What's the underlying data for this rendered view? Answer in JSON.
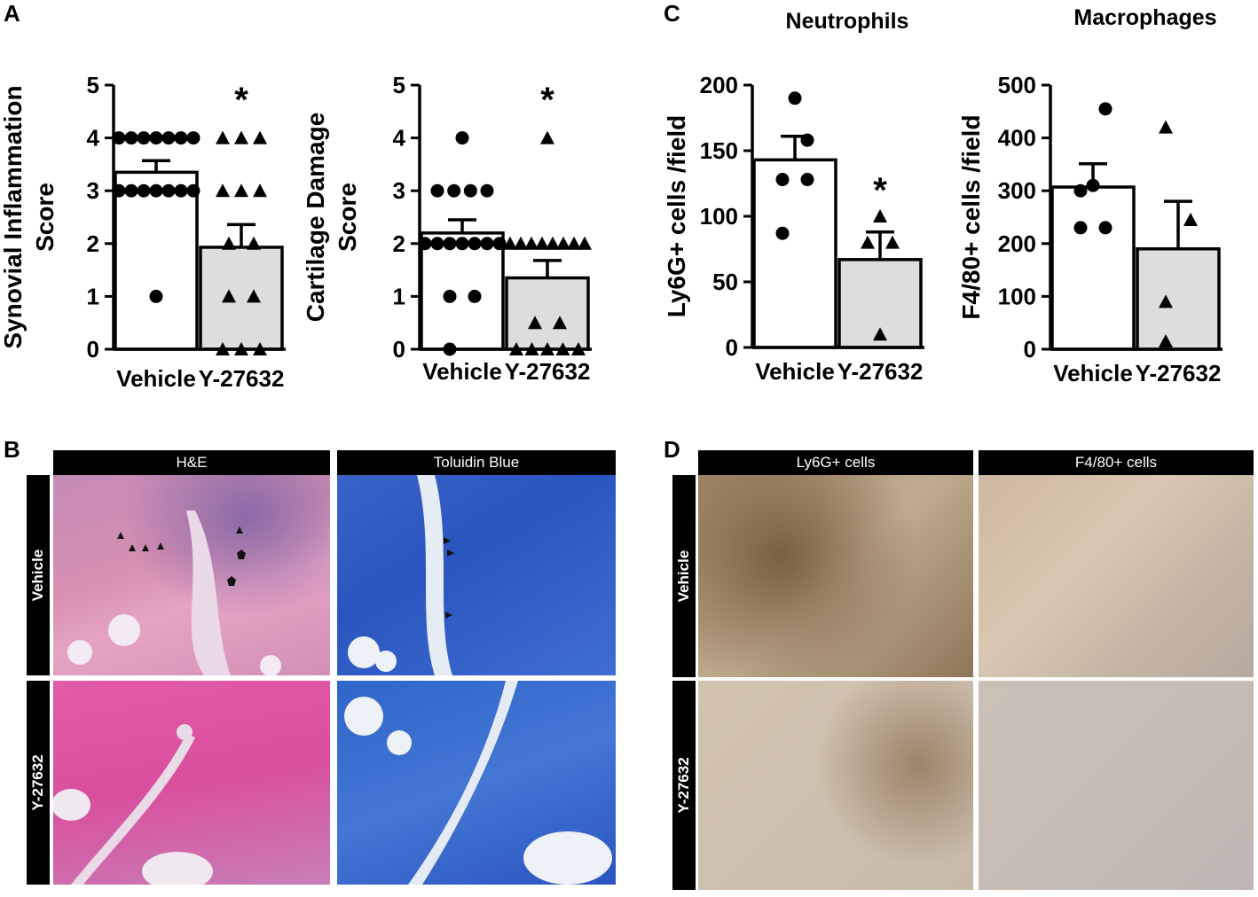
{
  "panel_labels": {
    "a": "A",
    "b": "B",
    "c": "C",
    "d": "D"
  },
  "colors": {
    "vehicle_bar": "#ffffff",
    "y27632_bar": "#dddddd",
    "marker": "#000000"
  },
  "chart_data": [
    {
      "id": "synovial",
      "type": "bar",
      "title": "",
      "ylabel_line1": "Synovial Inflammation",
      "ylabel_line2": "Score",
      "ylim": [
        0,
        5
      ],
      "yticks": [
        "0",
        "1",
        "2",
        "3",
        "4",
        "5"
      ],
      "ytick_values": [
        0,
        1,
        2,
        3,
        4,
        5
      ],
      "categories": [
        "Vehicle",
        "Y-27632"
      ],
      "values": [
        3.35,
        1.93
      ],
      "sem": [
        0.22,
        0.43
      ],
      "markers": [
        "circle",
        "triangle"
      ],
      "points": [
        [
          4,
          4,
          4,
          4,
          4,
          4,
          4,
          3,
          3,
          3,
          3,
          3,
          3,
          3,
          1
        ],
        [
          4,
          4,
          4,
          3,
          3,
          3,
          2,
          2,
          1,
          1,
          0,
          0,
          0
        ]
      ],
      "significance": [
        "",
        "*"
      ]
    },
    {
      "id": "cartilage",
      "type": "bar",
      "title": "",
      "ylabel_line1": "Cartilage Damage",
      "ylabel_line2": "Score",
      "ylim": [
        0,
        5
      ],
      "yticks": [
        "0",
        "1",
        "2",
        "3",
        "4",
        "5"
      ],
      "ytick_values": [
        0,
        1,
        2,
        3,
        4,
        5
      ],
      "categories": [
        "Vehicle",
        "Y-27632"
      ],
      "values": [
        2.2,
        1.35
      ],
      "sem": [
        0.25,
        0.33
      ],
      "markers": [
        "circle",
        "triangle"
      ],
      "points": [
        [
          4,
          3,
          3,
          3,
          3,
          2,
          2,
          2,
          2,
          2,
          2,
          2,
          1,
          1,
          0
        ],
        [
          4,
          2,
          2,
          2,
          2,
          2,
          2,
          2,
          2,
          0.5,
          0.5,
          0,
          0,
          0,
          0,
          0
        ]
      ],
      "significance": [
        "",
        "*"
      ]
    },
    {
      "id": "neutrophils",
      "type": "bar",
      "title": "Neutrophils",
      "ylabel_line1": "Ly6G+ cells /field",
      "ylabel_line2": "",
      "ylim": [
        0,
        200
      ],
      "yticks": [
        "0",
        "50",
        "100",
        "150",
        "200"
      ],
      "ytick_values": [
        0,
        50,
        100,
        150,
        200
      ],
      "categories": [
        "Vehicle",
        "Y-27632"
      ],
      "values": [
        143,
        67
      ],
      "sem": [
        18,
        21
      ],
      "markers": [
        "circle",
        "triangle"
      ],
      "points": [
        [
          190,
          158,
          128,
          128,
          87
        ],
        [
          100,
          80,
          80,
          10
        ]
      ],
      "significance": [
        "",
        "*"
      ]
    },
    {
      "id": "macrophages",
      "type": "bar",
      "title": "Macrophages",
      "ylabel_line1": "F4/80+ cells /field",
      "ylabel_line2": "",
      "ylim": [
        0,
        500
      ],
      "yticks": [
        "0",
        "100",
        "200",
        "300",
        "400",
        "500"
      ],
      "ytick_values": [
        0,
        100,
        200,
        300,
        400,
        500
      ],
      "categories": [
        "Vehicle",
        "Y-27632"
      ],
      "values": [
        307,
        190
      ],
      "sem": [
        44,
        90
      ],
      "markers": [
        "circle",
        "triangle"
      ],
      "points": [
        [
          455,
          310,
          300,
          230,
          230
        ],
        [
          420,
          245,
          90,
          15
        ]
      ],
      "significance": [
        "",
        ""
      ]
    }
  ],
  "panel_b": {
    "columns": [
      "H&E",
      "Toluidin Blue"
    ],
    "rows": [
      "Vehicle",
      "Y-27632"
    ]
  },
  "panel_d": {
    "columns": [
      "Ly6G+ cells",
      "F4/80+ cells"
    ],
    "rows": [
      "Vehicle",
      "Y-27632"
    ]
  }
}
